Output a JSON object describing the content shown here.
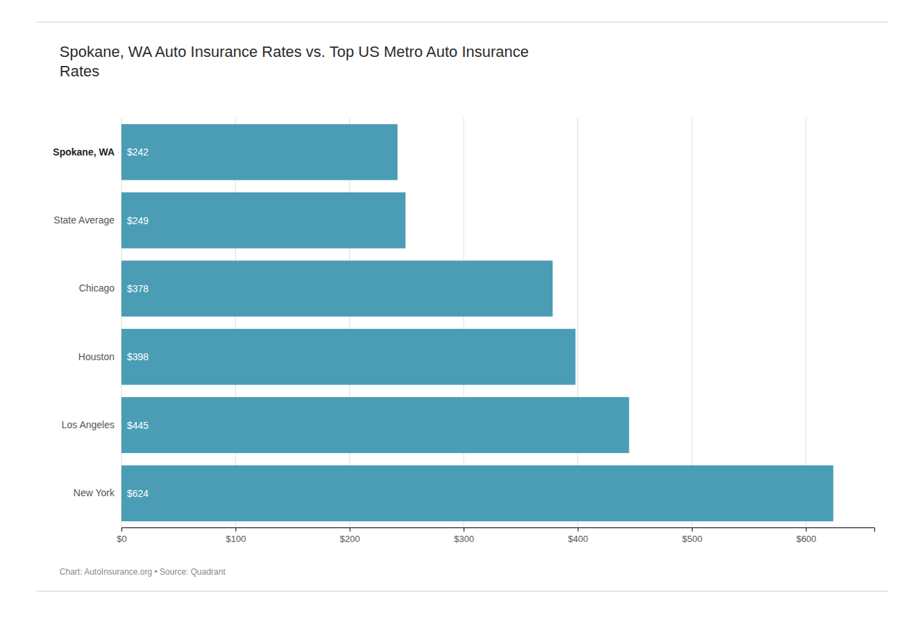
{
  "chart_data": {
    "type": "bar",
    "orientation": "horizontal",
    "title": "Spokane, WA Auto Insurance Rates vs. Top US Metro Auto Insurance\nRates",
    "caption": "Chart: AutoInsurance.org • Source: Quadrant",
    "categories": [
      "Spokane, WA",
      "State Average",
      "Chicago",
      "Houston",
      "Los Angeles",
      "New York"
    ],
    "values": [
      242,
      249,
      378,
      398,
      445,
      624
    ],
    "value_labels": [
      "$242",
      "$249",
      "$378",
      "$398",
      "$445",
      "$624"
    ],
    "data_labels": true,
    "color": "#4a9db5",
    "xlim": [
      0,
      660
    ],
    "xticks": [
      {
        "value": 0,
        "label": "$0"
      },
      {
        "value": 100,
        "label": "$100"
      },
      {
        "value": 200,
        "label": "$200"
      },
      {
        "value": 300,
        "label": "$300"
      },
      {
        "value": 400,
        "label": "$400"
      },
      {
        "value": 500,
        "label": "$500"
      },
      {
        "value": 600,
        "label": "$600"
      }
    ],
    "grid": true
  }
}
